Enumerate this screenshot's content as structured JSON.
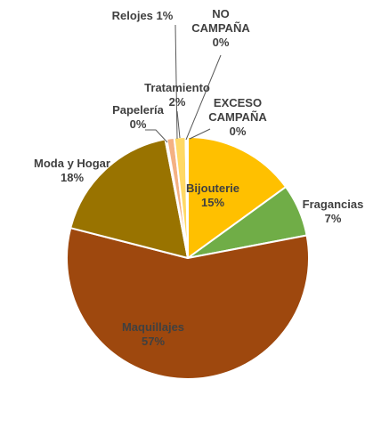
{
  "chart_data": {
    "type": "pie",
    "title": "",
    "start_angle_deg": 0,
    "direction": "clockwise",
    "slices": [
      {
        "name": "Bijouterie",
        "value": 15,
        "label": "15%",
        "color": "#FFC000"
      },
      {
        "name": "Fragancias",
        "value": 7,
        "label": "7%",
        "color": "#70AD47"
      },
      {
        "name": "Maquillajes",
        "value": 57,
        "label": "57%",
        "color": "#9E480E"
      },
      {
        "name": "Moda y Hogar",
        "value": 18,
        "label": "18%",
        "color": "#997300"
      },
      {
        "name": "Papelería",
        "value": 0.2,
        "label": "0%",
        "color": "#C55A11"
      },
      {
        "name": "Relojes",
        "value": 1.0,
        "label": "1%",
        "color": "#F4B183"
      },
      {
        "name": "Tratamiento",
        "value": 1.5,
        "label": "2%",
        "color": "#FFD966"
      },
      {
        "name": "NO CAMPAÑA",
        "value": 0.1,
        "label": "0%",
        "color": "#FFE699"
      },
      {
        "name": "EXCESO CAMPAÑA",
        "value": 0.2,
        "label": "0%",
        "color": "#FFC000"
      }
    ],
    "legend": "none"
  }
}
